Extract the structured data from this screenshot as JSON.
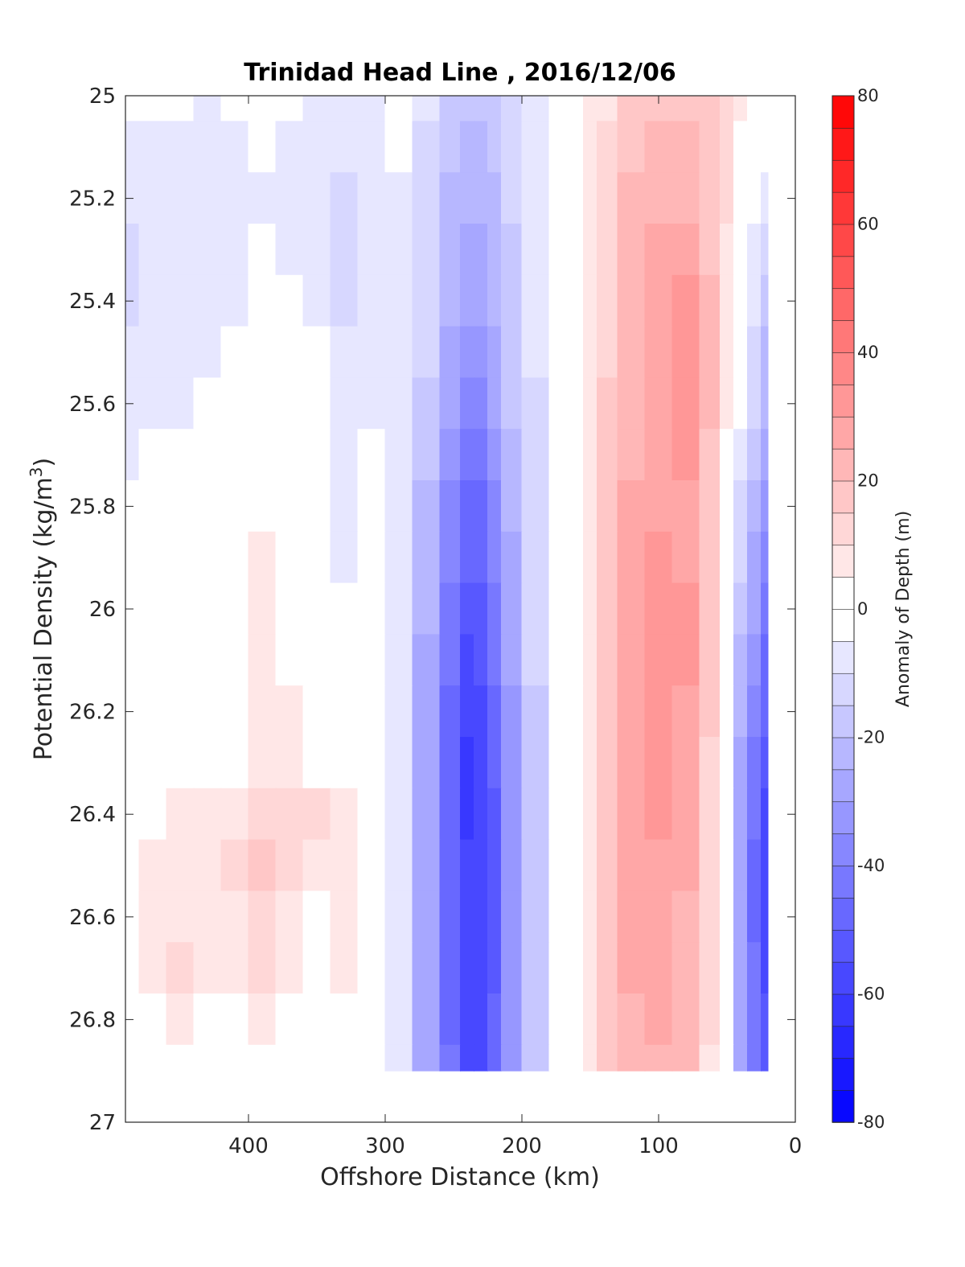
{
  "chart_data": {
    "type": "heatmap",
    "title": "Trinidad Head Line , 2016/12/06",
    "xlabel": "Offshore Distance (km)",
    "ylabel": "Potential Density (kg/m",
    "ylabel_superscript": "3",
    "ylabel_suffix": ")",
    "colorbar_label": "Anomaly of Depth (m)",
    "xlim": [
      490,
      0
    ],
    "ylim": [
      25,
      27
    ],
    "x_reversed": true,
    "y_reversed": true,
    "x_ticks": [
      400,
      300,
      200,
      100,
      0
    ],
    "y_ticks": [
      25,
      25.2,
      25.4,
      25.6,
      25.8,
      26,
      26.2,
      26.4,
      26.6,
      26.8,
      27
    ],
    "y_tick_labels": [
      "25",
      "25.2",
      "25.4",
      "25.6",
      "25.8",
      "26",
      "26.2",
      "26.4",
      "26.6",
      "26.8",
      "27"
    ],
    "colorbar_ticks": [
      80,
      60,
      40,
      20,
      0,
      -20,
      -40,
      -60,
      -80
    ],
    "colorbar_range": [
      -80,
      80
    ],
    "colorbar_step": 5,
    "colormap": "blue-white-red",
    "color_negative": "#0000ff",
    "color_positive": "#ff0000",
    "grid": false,
    "data_extent": {
      "x": [
        490,
        20
      ],
      "y": [
        25,
        26.9
      ]
    },
    "x": [
      490,
      470,
      450,
      430,
      410,
      390,
      370,
      350,
      330,
      310,
      290,
      270,
      250,
      240,
      230,
      220,
      210,
      190,
      170,
      160,
      150,
      140,
      120,
      100,
      80,
      60,
      50,
      40,
      30,
      20
    ],
    "y": [
      25.0,
      25.1,
      25.2,
      25.3,
      25.4,
      25.5,
      25.6,
      25.7,
      25.8,
      25.9,
      26.0,
      26.1,
      26.2,
      26.3,
      26.4,
      26.5,
      26.6,
      26.7,
      26.8,
      26.9
    ],
    "z": [
      [
        -4,
        -5,
        -5,
        -6,
        -4,
        -3,
        -5,
        -6,
        -7,
        -6,
        -4,
        -10,
        -16,
        -20,
        -20,
        -17,
        -12,
        -8,
        -3,
        2,
        6,
        10,
        16,
        20,
        20,
        17,
        12,
        6,
        1,
        -2
      ],
      [
        -6,
        -6,
        -8,
        -7,
        -6,
        -5,
        -6,
        -7,
        -9,
        -7,
        -5,
        -11,
        -18,
        -22,
        -22,
        -19,
        -13,
        -8,
        -3,
        2,
        7,
        11,
        18,
        22,
        22,
        18,
        12,
        5,
        -1,
        -4
      ],
      [
        -9,
        -8,
        -10,
        -8,
        -7,
        -6,
        -7,
        -8,
        -11,
        -8,
        -6,
        -12,
        -21,
        -25,
        -25,
        -21,
        -15,
        -9,
        -3,
        2,
        8,
        13,
        21,
        25,
        24,
        19,
        11,
        3,
        -3,
        -7
      ],
      [
        -12,
        -9,
        -9,
        -8,
        -7,
        -5,
        -6,
        -7,
        -12,
        -8,
        -6,
        -13,
        -23,
        -28,
        -28,
        -23,
        -16,
        -9,
        -3,
        2,
        8,
        14,
        22,
        27,
        27,
        20,
        10,
        1,
        -6,
        -11
      ],
      [
        -11,
        -9,
        -8,
        -7,
        -6,
        2,
        -3,
        -6,
        -11,
        -7,
        -6,
        -14,
        -25,
        -30,
        -30,
        -25,
        -18,
        -10,
        -3,
        2,
        9,
        15,
        23,
        28,
        31,
        21,
        9,
        -1,
        -9,
        -16
      ],
      [
        -9,
        -8,
        -7,
        -6,
        -5,
        2,
        1,
        -5,
        -10,
        -7,
        -6,
        -15,
        -27,
        -34,
        -34,
        -27,
        -19,
        -10,
        -3,
        2,
        9,
        15,
        24,
        29,
        33,
        21,
        8,
        -3,
        -12,
        -21
      ],
      [
        -7,
        -7,
        -6,
        -5,
        -3,
        2,
        1,
        -5,
        -9,
        -6,
        -6,
        -17,
        -30,
        -38,
        -38,
        -30,
        -20,
        -11,
        -3,
        2,
        9,
        16,
        25,
        30,
        33,
        21,
        7,
        -5,
        -15,
        -25
      ],
      [
        -6,
        -5,
        -5,
        -4,
        2,
        2,
        1,
        -4,
        -8,
        -5,
        -6,
        -19,
        -33,
        -42,
        -42,
        -33,
        -22,
        -11,
        -3,
        2,
        9,
        16,
        25,
        29,
        31,
        20,
        5,
        -8,
        -18,
        -30
      ],
      [
        -4,
        -4,
        -4,
        -3,
        2,
        2,
        1,
        -3,
        -7,
        -5,
        -6,
        -21,
        -36,
        -46,
        -46,
        -36,
        -24,
        -12,
        -3,
        2,
        9,
        16,
        26,
        30,
        29,
        19,
        4,
        -11,
        -22,
        -34
      ],
      [
        3,
        -3,
        -2,
        1,
        2,
        6,
        3,
        -2,
        -6,
        -4,
        -6,
        -23,
        -39,
        -50,
        -49,
        -39,
        -26,
        -13,
        -4,
        2,
        9,
        16,
        26,
        32,
        30,
        18,
        2,
        -14,
        -26,
        -38
      ],
      [
        3,
        1,
        -3,
        2,
        2,
        6,
        4,
        -1,
        -5,
        -3,
        -6,
        -25,
        -42,
        -53,
        -52,
        -42,
        -28,
        -14,
        -4,
        2,
        9,
        17,
        27,
        34,
        31,
        18,
        0,
        -18,
        -30,
        -42
      ],
      [
        3,
        1,
        1,
        2,
        2,
        6,
        4,
        1,
        -3,
        -2,
        -7,
        -27,
        -45,
        -56,
        -55,
        -45,
        -30,
        -15,
        -4,
        2,
        9,
        17,
        28,
        35,
        31,
        17,
        -1,
        -21,
        -34,
        -46
      ],
      [
        3,
        1,
        -3,
        2,
        2,
        7,
        6,
        2,
        -1,
        0,
        -7,
        -28,
        -48,
        -59,
        -58,
        -48,
        -32,
        -16,
        -4,
        2,
        9,
        17,
        28,
        35,
        30,
        16,
        -2,
        -24,
        -38,
        -50
      ],
      [
        3,
        2,
        2,
        3,
        4,
        9,
        8,
        4,
        1,
        0,
        -7,
        -28,
        -49,
        -61,
        -60,
        -50,
        -34,
        -17,
        -4,
        2,
        9,
        17,
        27,
        33,
        29,
        15,
        -3,
        -27,
        -42,
        -55
      ],
      [
        3,
        5,
        6,
        8,
        10,
        12,
        11,
        11,
        6,
        1,
        -7,
        -28,
        -49,
        -61,
        -60,
        -51,
        -35,
        -18,
        -4,
        2,
        9,
        17,
        27,
        32,
        28,
        14,
        -4,
        -29,
        -45,
        -58
      ],
      [
        3,
        6,
        7,
        10,
        13,
        16,
        12,
        8,
        8,
        2,
        -7,
        -28,
        -48,
        -59,
        -59,
        -51,
        -35,
        -18,
        -4,
        2,
        9,
        17,
        26,
        30,
        26,
        13,
        -4,
        -30,
        -46,
        -59
      ],
      [
        3,
        7,
        9,
        9,
        10,
        13,
        7,
        3,
        7,
        2,
        -7,
        -27,
        -47,
        -58,
        -58,
        -51,
        -35,
        -18,
        -4,
        2,
        9,
        17,
        27,
        28,
        25,
        12,
        -5,
        -30,
        -46,
        -58
      ],
      [
        3,
        6,
        12,
        9,
        8,
        12,
        9,
        5,
        6,
        1,
        -7,
        -27,
        -46,
        -57,
        -58,
        -51,
        -35,
        -18,
        -4,
        2,
        9,
        17,
        30,
        27,
        24,
        11,
        -5,
        -30,
        -45,
        -56
      ],
      [
        3,
        5,
        6,
        5,
        4,
        6,
        5,
        2,
        1,
        0,
        -7,
        -27,
        -46,
        -57,
        -57,
        -50,
        -34,
        -18,
        -4,
        2,
        9,
        17,
        25,
        26,
        23,
        11,
        -5,
        -29,
        -44,
        -54
      ],
      [
        -4,
        -2,
        2,
        3,
        2,
        3,
        2,
        1,
        -2,
        -5,
        -7,
        -26,
        -45,
        -56,
        -56,
        -49,
        -33,
        -17,
        -4,
        2,
        9,
        16,
        24,
        25,
        22,
        10,
        -5,
        -28,
        -43,
        -52
      ]
    ]
  }
}
